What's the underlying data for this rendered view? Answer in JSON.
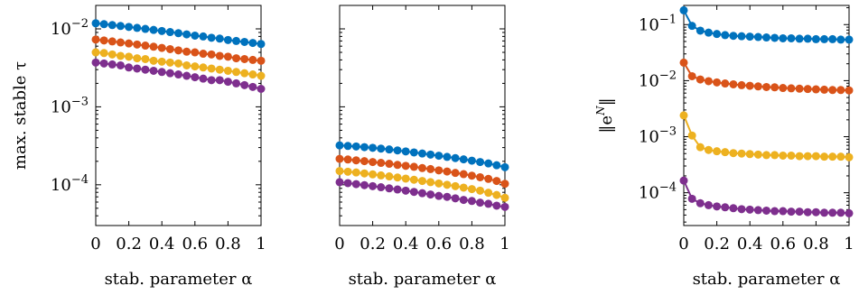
{
  "chart_data": [
    {
      "type": "line",
      "title": "",
      "xlabel": "stab. parameter α",
      "ylabel": "max. stable τ",
      "yscale": "log",
      "xlim": [
        0,
        1
      ],
      "ylim": [
        3e-05,
        0.02
      ],
      "x_ticks": [
        0,
        0.2,
        0.4,
        0.6,
        0.8,
        1
      ],
      "x_tick_labels": [
        "0",
        "0.2",
        "0.4",
        "0.6",
        "0.8",
        "1"
      ],
      "y_ticks": [
        0.0001,
        0.001,
        0.01
      ],
      "y_tick_labels": [
        "10",
        "10",
        "10"
      ],
      "y_tick_exponents": [
        "−4",
        "−3",
        "−2"
      ],
      "x": [
        0,
        0.05,
        0.1,
        0.15,
        0.2,
        0.25,
        0.3,
        0.35,
        0.4,
        0.45,
        0.5,
        0.55,
        0.6,
        0.65,
        0.7,
        0.75,
        0.8,
        0.85,
        0.9,
        0.95,
        1
      ],
      "series": [
        {
          "color": "#0072bd",
          "values": [
            0.0118,
            0.0115,
            0.0112,
            0.0109,
            0.0106,
            0.0103,
            0.01,
            0.0097,
            0.0094,
            0.0091,
            0.0088,
            0.0085,
            0.0082,
            0.008,
            0.0077,
            0.0075,
            0.0072,
            0.007,
            0.0068,
            0.0066,
            0.0064
          ]
        },
        {
          "color": "#d95319",
          "values": [
            0.0073,
            0.0071,
            0.0069,
            0.0067,
            0.0065,
            0.0063,
            0.0061,
            0.0059,
            0.0057,
            0.0055,
            0.0053,
            0.0051,
            0.005,
            0.0048,
            0.0047,
            0.0045,
            0.0044,
            0.0042,
            0.0041,
            0.004,
            0.0039
          ]
        },
        {
          "color": "#edb120",
          "values": [
            0.005,
            0.0049,
            0.0047,
            0.0045,
            0.0044,
            0.0042,
            0.0041,
            0.0039,
            0.0038,
            0.0037,
            0.0036,
            0.0034,
            0.0033,
            0.0032,
            0.0031,
            0.003,
            0.0029,
            0.0028,
            0.0027,
            0.0026,
            0.0025
          ]
        },
        {
          "color": "#7e2f8e",
          "values": [
            0.0037,
            0.0036,
            0.0035,
            0.0034,
            0.0032,
            0.0031,
            0.003,
            0.0029,
            0.0028,
            0.0027,
            0.0026,
            0.0025,
            0.0024,
            0.0023,
            0.0022,
            0.0022,
            0.0021,
            0.002,
            0.0019,
            0.0018,
            0.0017
          ]
        }
      ]
    },
    {
      "type": "line",
      "title": "",
      "xlabel": "stab. parameter α",
      "ylabel": "",
      "yscale": "log",
      "xlim": [
        0,
        1
      ],
      "ylim": [
        3e-05,
        0.02
      ],
      "x_ticks": [
        0,
        0.2,
        0.4,
        0.6,
        0.8,
        1
      ],
      "x_tick_labels": [
        "0",
        "0.2",
        "0.4",
        "0.6",
        "0.8",
        "1"
      ],
      "y_ticks": [],
      "y_tick_labels": [],
      "y_tick_exponents": [],
      "x": [
        0,
        0.05,
        0.1,
        0.15,
        0.2,
        0.25,
        0.3,
        0.35,
        0.4,
        0.45,
        0.5,
        0.55,
        0.6,
        0.65,
        0.7,
        0.75,
        0.8,
        0.85,
        0.9,
        0.95,
        1
      ],
      "series": [
        {
          "color": "#0072bd",
          "values": [
            0.00032,
            0.000315,
            0.00031,
            0.000304,
            0.000298,
            0.000291,
            0.000284,
            0.000276,
            0.000268,
            0.00026,
            0.000252,
            0.000244,
            0.000236,
            0.000228,
            0.00022,
            0.000212,
            0.000204,
            0.000196,
            0.000188,
            0.000178,
            0.000168
          ]
        },
        {
          "color": "#d95319",
          "values": [
            0.000215,
            0.000211,
            0.000206,
            0.000201,
            0.000196,
            0.000191,
            0.000186,
            0.00018,
            0.000175,
            0.00017,
            0.000164,
            0.000159,
            0.000153,
            0.000148,
            0.000142,
            0.000137,
            0.000131,
            0.000125,
            0.000119,
            0.000112,
            0.000103
          ]
        },
        {
          "color": "#edb120",
          "values": [
            0.00015,
            0.000147,
            0.000144,
            0.00014,
            0.000136,
            0.000132,
            0.000128,
            0.000124,
            0.00012,
            0.000116,
            0.000112,
            0.000108,
            0.000104,
            0.0001,
            9.6e-05,
            9.2e-05,
            8.8e-05,
            8.4e-05,
            7.9e-05,
            7.4e-05,
            6.8e-05
          ]
        },
        {
          "color": "#7e2f8e",
          "values": [
            0.000108,
            0.000105,
            0.000102,
            9.9e-05,
            9.6e-05,
            9.3e-05,
            9e-05,
            8.7e-05,
            8.4e-05,
            8.1e-05,
            7.8e-05,
            7.5e-05,
            7.2e-05,
            7e-05,
            6.7e-05,
            6.4e-05,
            6.2e-05,
            5.9e-05,
            5.7e-05,
            5.4e-05,
            5.2e-05
          ]
        }
      ]
    },
    {
      "type": "line",
      "title": "",
      "xlabel": "stab. parameter α",
      "ylabel": "‖e^N‖",
      "ylabel_base": "‖e",
      "ylabel_sup": "N",
      "ylabel_end": "‖",
      "yscale": "log",
      "xlim": [
        0,
        1
      ],
      "ylim": [
        2.6e-05,
        0.22
      ],
      "x_ticks": [
        0,
        0.2,
        0.4,
        0.6,
        0.8,
        1
      ],
      "x_tick_labels": [
        "0",
        "0.2",
        "0.4",
        "0.6",
        "0.8",
        "1"
      ],
      "y_ticks": [
        0.0001,
        0.001,
        0.01,
        0.1
      ],
      "y_tick_labels": [
        "10",
        "10",
        "10",
        "10"
      ],
      "y_tick_exponents": [
        "−4",
        "−3",
        "−2",
        "−1"
      ],
      "x": [
        0,
        0.05,
        0.1,
        0.15,
        0.2,
        0.25,
        0.3,
        0.35,
        0.4,
        0.45,
        0.5,
        0.55,
        0.6,
        0.65,
        0.7,
        0.75,
        0.8,
        0.85,
        0.9,
        0.95,
        1
      ],
      "series": [
        {
          "color": "#0072bd",
          "values": [
            0.18,
            0.095,
            0.078,
            0.072,
            0.068,
            0.065,
            0.063,
            0.062,
            0.061,
            0.06,
            0.059,
            0.058,
            0.057,
            0.057,
            0.056,
            0.056,
            0.055,
            0.055,
            0.055,
            0.054,
            0.054
          ]
        },
        {
          "color": "#d95319",
          "values": [
            0.021,
            0.012,
            0.0105,
            0.0098,
            0.0093,
            0.0089,
            0.0086,
            0.0083,
            0.0081,
            0.0079,
            0.0077,
            0.0076,
            0.0074,
            0.0073,
            0.0072,
            0.0071,
            0.007,
            0.0069,
            0.0068,
            0.0068,
            0.0067
          ]
        },
        {
          "color": "#edb120",
          "values": [
            0.0024,
            0.00105,
            0.00065,
            0.00058,
            0.00055,
            0.00053,
            0.00051,
            0.0005,
            0.00049,
            0.00048,
            0.00047,
            0.00047,
            0.00046,
            0.00046,
            0.00045,
            0.00045,
            0.00045,
            0.00044,
            0.00044,
            0.00044,
            0.00043
          ]
        },
        {
          "color": "#7e2f8e",
          "values": [
            0.000165,
            7.8e-05,
            6.5e-05,
            6e-05,
            5.7e-05,
            5.5e-05,
            5.3e-05,
            5.1e-05,
            5e-05,
            4.9e-05,
            4.8e-05,
            4.7e-05,
            4.7e-05,
            4.6e-05,
            4.6e-05,
            4.5e-05,
            4.5e-05,
            4.4e-05,
            4.4e-05,
            4.4e-05,
            4.3e-05
          ]
        }
      ]
    }
  ]
}
